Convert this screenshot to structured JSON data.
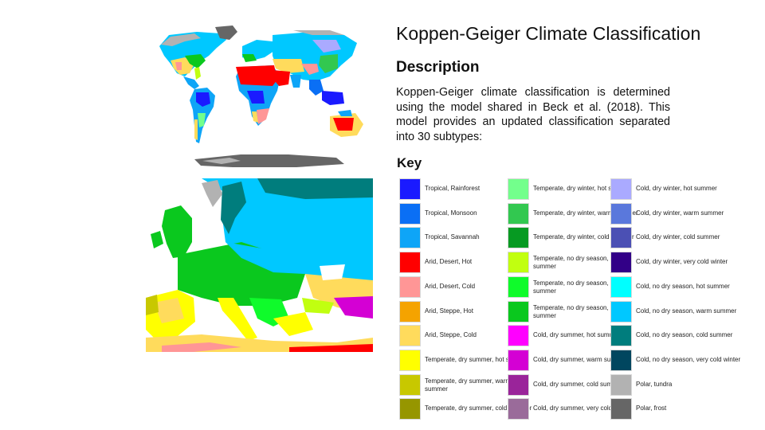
{
  "title": "Koppen-Geiger Climate Classification",
  "description": {
    "heading": "Description",
    "text": "Koppen-Geiger climate classification is determined using the model shared in Beck et al. (2018). This model provides an updated classification separated into 30 subtypes:"
  },
  "key": {
    "heading": "Key",
    "columns": [
      [
        {
          "label": "Tropical, Rainforest",
          "color": "#1a1aff"
        },
        {
          "label": "Tropical, Monsoon",
          "color": "#0a6ff5"
        },
        {
          "label": "Tropical, Savannah",
          "color": "#0ea5f7"
        },
        {
          "label": "Arid, Desert, Hot",
          "color": "#ff0000"
        },
        {
          "label": "Arid, Desert, Cold",
          "color": "#ff9696"
        },
        {
          "label": "Arid, Steppe, Hot",
          "color": "#f5a300"
        },
        {
          "label": "Arid, Steppe, Cold",
          "color": "#ffdb5c"
        },
        {
          "label": "Temperate, dry summer, hot summer",
          "color": "#ffff00"
        },
        {
          "label": "Temperate, dry summer, warm summer",
          "color": "#c8c800"
        },
        {
          "label": "Temperate, dry summer, cold summer",
          "color": "#969600"
        }
      ],
      [
        {
          "label": "Temperate, dry winter, hot summer",
          "color": "#73ff8c"
        },
        {
          "label": "Temperate, dry winter, warm summer",
          "color": "#32c850"
        },
        {
          "label": "Temperate, dry winter, cold summer",
          "color": "#069a22"
        },
        {
          "label": "Temperate, no dry season, hot summer",
          "color": "#c1ff10"
        },
        {
          "label": "Temperate, no dry season, warm summer",
          "color": "#0ffb2b"
        },
        {
          "label": "Temperate, no dry season, cold summer",
          "color": "#0ac81e"
        },
        {
          "label": "Cold, dry summer, hot summer",
          "color": "#ff00ff"
        },
        {
          "label": "Cold, dry summer, warm summer",
          "color": "#d400d4"
        },
        {
          "label": "Cold, dry summer, cold summer",
          "color": "#9a249a"
        },
        {
          "label": "Cold, dry summer, very cold winter",
          "color": "#9a6b9a"
        }
      ],
      [
        {
          "label": "Cold, dry winter, hot summer",
          "color": "#aaaaff"
        },
        {
          "label": "Cold, dry winter, warm summer",
          "color": "#5a78dc"
        },
        {
          "label": "Cold, dry winter, cold summer",
          "color": "#4b50b4"
        },
        {
          "label": "Cold, dry winter, very cold winter",
          "color": "#320087"
        },
        {
          "label": "Cold, no dry season, hot summer",
          "color": "#00ffff"
        },
        {
          "label": "Cold, no dry season, warm summer",
          "color": "#00c8ff"
        },
        {
          "label": "Cold, no dry season, cold summer",
          "color": "#007d7d"
        },
        {
          "label": "Cold, no dry season, very cold winter",
          "color": "#00465f"
        },
        {
          "label": "Polar, tundra",
          "color": "#b2b2b2"
        },
        {
          "label": "Polar, frost",
          "color": "#666666"
        }
      ]
    ]
  }
}
